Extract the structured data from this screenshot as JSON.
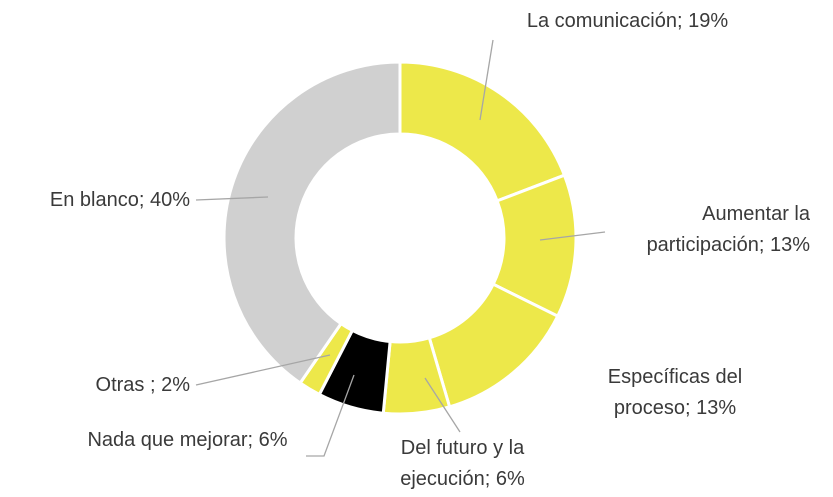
{
  "chart_data": {
    "type": "donut",
    "categories": [
      "La comunicación;",
      "Aumentar la participación;",
      "Específicas del proceso;",
      "Del futuro y la ejecución;",
      "Nada que mejorar;",
      "Otras ;",
      "En blanco;"
    ],
    "values": [
      19,
      13,
      13,
      6,
      6,
      2,
      40
    ],
    "value_labels": [
      "19%",
      "13%",
      "13%",
      "6%",
      "6%",
      "2%",
      "40%"
    ],
    "colors": [
      "#ede84a",
      "#ede84a",
      "#ede84a",
      "#ede84a",
      "#000000",
      "#ede84a",
      "#d0d0d0"
    ]
  }
}
